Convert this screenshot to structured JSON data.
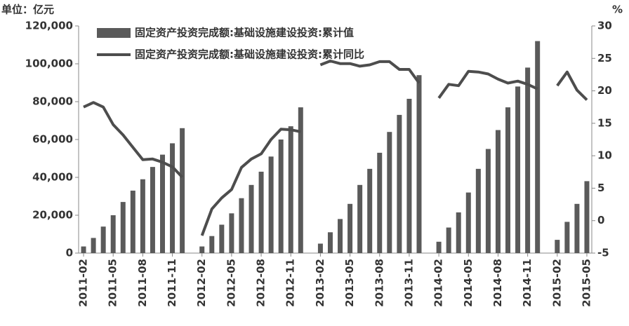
{
  "chart_data": {
    "type": "bar-line",
    "title": "单位：亿元",
    "y2_label": "%",
    "categories": [
      "2011-02",
      null,
      null,
      "2011-05",
      null,
      null,
      "2011-08",
      null,
      null,
      "2011-11",
      null,
      null,
      "2012-02",
      null,
      null,
      "2012-05",
      null,
      null,
      "2012-08",
      null,
      null,
      "2012-11",
      null,
      null,
      "2013-02",
      null,
      null,
      "2013-05",
      null,
      null,
      "2013-08",
      null,
      null,
      "2013-11",
      null,
      null,
      "2014-02",
      null,
      null,
      "2014-05",
      null,
      null,
      "2014-08",
      null,
      null,
      "2014-11",
      null,
      null,
      "2015-02",
      null,
      null,
      "2015-05"
    ],
    "series": [
      {
        "name": "固定资产投资完成额:基础设施建设投资:累计值",
        "type": "bar",
        "color": "#5a5a5a",
        "values": [
          3500,
          8000,
          14000,
          20000,
          27000,
          33000,
          39000,
          45500,
          52000,
          58000,
          66000,
          null,
          3500,
          9000,
          15000,
          21000,
          29000,
          36000,
          43000,
          51000,
          60000,
          67000,
          77000,
          null,
          5000,
          11000,
          18000,
          26000,
          36000,
          44500,
          53000,
          64000,
          73000,
          81500,
          94000,
          null,
          6000,
          13500,
          21500,
          32000,
          44500,
          55000,
          65000,
          77000,
          88000,
          98000,
          112000,
          null,
          7000,
          16500,
          26000,
          38000
        ]
      },
      {
        "name": "固定资产投资完成额:基础设施建设投资:累计同比",
        "type": "line",
        "axis": "y2",
        "color": "#4d4d4d",
        "values": [
          17.5,
          18.2,
          17.5,
          14.8,
          13.2,
          11.3,
          9.4,
          9.5,
          9.0,
          8.3,
          6.7,
          null,
          -2.3,
          1.8,
          3.5,
          4.8,
          8.2,
          9.5,
          10.3,
          12.5,
          14.1,
          14.0,
          13.7,
          null,
          24.0,
          24.6,
          24.2,
          24.2,
          23.8,
          24.0,
          24.5,
          24.5,
          23.3,
          23.3,
          21.2,
          null,
          18.9,
          21.0,
          20.8,
          23.0,
          22.9,
          22.6,
          21.8,
          21.2,
          21.5,
          21.0,
          20.3,
          null,
          20.8,
          22.9,
          20.1,
          18.6
        ]
      }
    ],
    "ylim": [
      0,
      120000
    ],
    "yticks": [
      0,
      {
        "value": 20000,
        "label": "20,000"
      },
      {
        "value": 40000,
        "label": "40,000"
      },
      {
        "value": 60000,
        "label": "60,000"
      },
      {
        "value": 80000,
        "label": "80,000"
      },
      {
        "value": 100000,
        "label": "100,000"
      },
      {
        "value": 120000,
        "label": "120,000"
      }
    ],
    "y2lim": [
      -5,
      30
    ],
    "y2ticks": [
      -5,
      0,
      5,
      10,
      15,
      20,
      25,
      30
    ],
    "legend": "top-left"
  }
}
